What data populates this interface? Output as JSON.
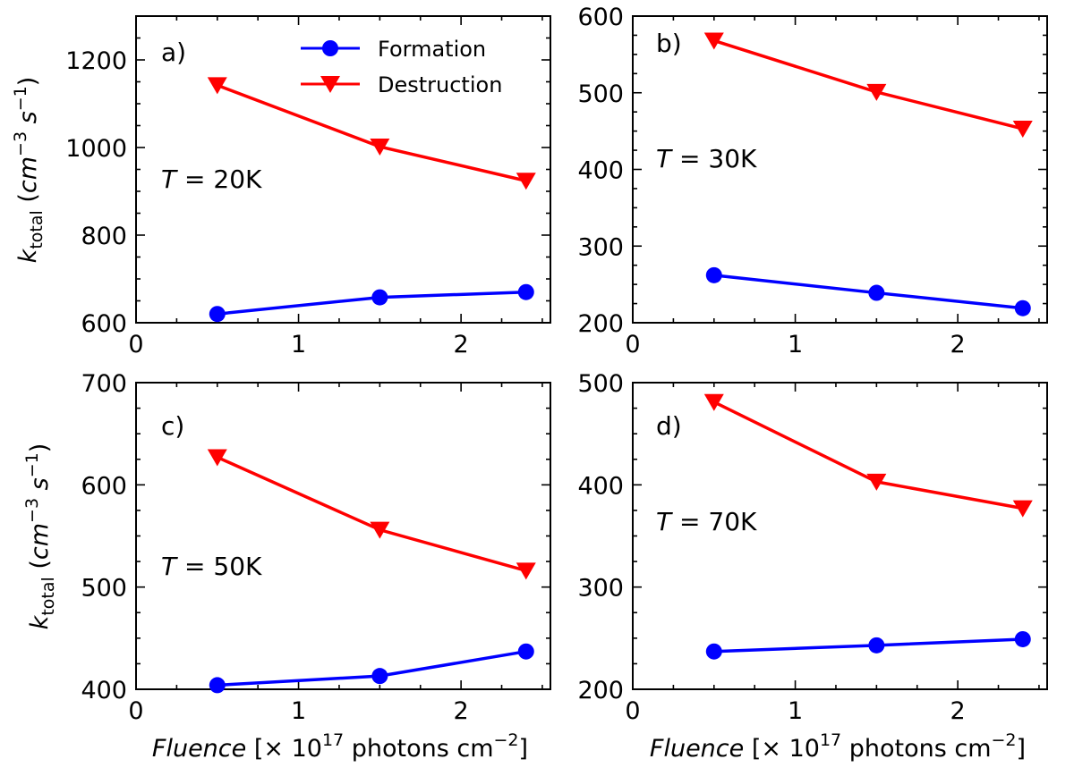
{
  "chart_data": [
    {
      "type": "line",
      "panel_label": "a)",
      "temperature_label": "T = 20K",
      "temperature": "20K",
      "x": [
        0.5,
        1.5,
        2.4
      ],
      "series": [
        {
          "name": "Formation",
          "values": [
            620,
            658,
            670
          ]
        },
        {
          "name": "Destruction",
          "values": [
            1142,
            1002,
            924
          ]
        }
      ],
      "xlim": [
        0,
        2.55
      ],
      "ylim": [
        600,
        1300
      ],
      "x_ticks": [
        0,
        1,
        2
      ],
      "y_ticks": [
        600,
        800,
        1000,
        1200
      ],
      "y_minor_step": 50,
      "show_legend": true
    },
    {
      "type": "line",
      "panel_label": "b)",
      "temperature_label": "T = 30K",
      "temperature": "30K",
      "x": [
        0.5,
        1.5,
        2.4
      ],
      "series": [
        {
          "name": "Formation",
          "values": [
            262,
            239,
            219
          ]
        },
        {
          "name": "Destruction",
          "values": [
            568,
            501,
            453
          ]
        }
      ],
      "xlim": [
        0,
        2.55
      ],
      "ylim": [
        200,
        600
      ],
      "x_ticks": [
        0,
        1,
        2
      ],
      "y_ticks": [
        200,
        300,
        400,
        500,
        600
      ],
      "y_minor_step": 25,
      "show_legend": false
    },
    {
      "type": "line",
      "panel_label": "c)",
      "temperature_label": "T = 50K",
      "temperature": "50K",
      "x": [
        0.5,
        1.5,
        2.4
      ],
      "series": [
        {
          "name": "Formation",
          "values": [
            404,
            413,
            437
          ]
        },
        {
          "name": "Destruction",
          "values": [
            627,
            556,
            516
          ]
        }
      ],
      "xlim": [
        0,
        2.55
      ],
      "ylim": [
        400,
        700
      ],
      "x_ticks": [
        0,
        1,
        2
      ],
      "y_ticks": [
        400,
        500,
        600,
        700
      ],
      "y_minor_step": 25,
      "show_legend": false
    },
    {
      "type": "line",
      "panel_label": "d)",
      "temperature_label": "T = 70K",
      "temperature": "70K",
      "x": [
        0.5,
        1.5,
        2.4
      ],
      "series": [
        {
          "name": "Formation",
          "values": [
            237,
            243,
            249
          ]
        },
        {
          "name": "Destruction",
          "values": [
            481,
            403,
            377
          ]
        }
      ],
      "xlim": [
        0,
        2.55
      ],
      "ylim": [
        200,
        500
      ],
      "x_ticks": [
        0,
        1,
        2
      ],
      "y_ticks": [
        200,
        300,
        400,
        500
      ],
      "y_minor_step": 25,
      "show_legend": false
    }
  ],
  "legend": {
    "formation_label": "Formation",
    "destruction_label": "Destruction"
  },
  "axis_titles": {
    "y_symbol": "k",
    "y_subscript": "total",
    "y_units_open": " (",
    "y_unit_cm": "cm",
    "y_unit_cm_exp": "−3",
    "y_unit_s": "s",
    "y_unit_s_exp": "−1",
    "y_units_close": ")",
    "x_word": "Fluence",
    "x_rest_1": " [× 10",
    "x_exp_17": "17",
    "x_rest_2": " photons cm",
    "x_exp_neg2": "−2",
    "x_close": "]"
  },
  "colors": {
    "formation": "#0000ff",
    "destruction": "#ff0000",
    "axes": "#000000"
  }
}
